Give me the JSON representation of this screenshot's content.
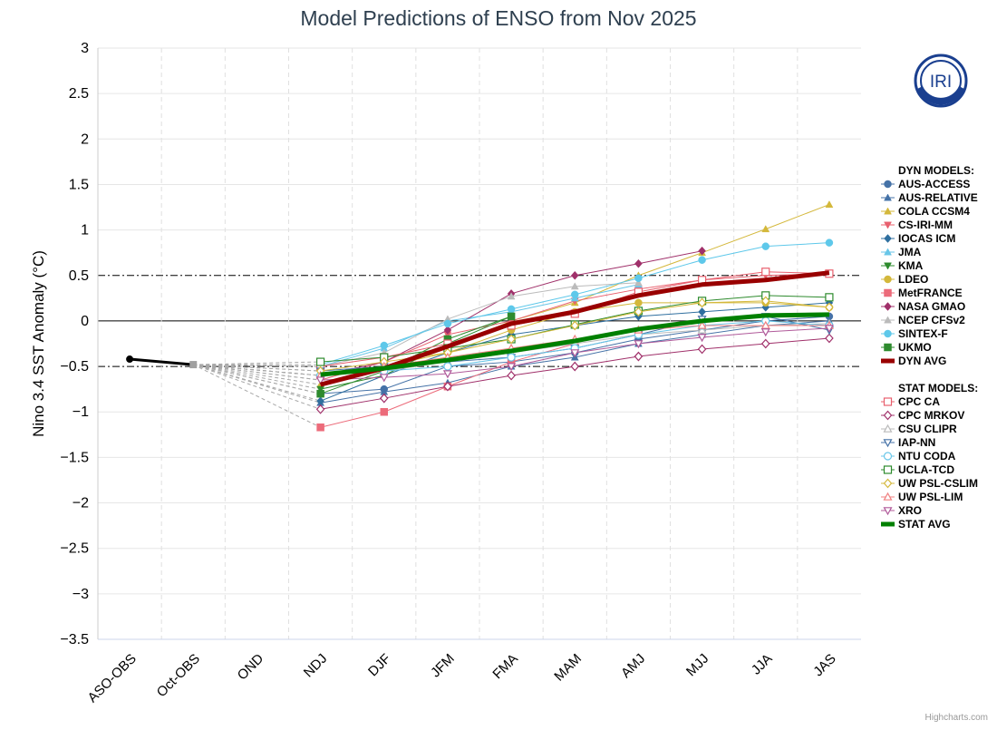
{
  "title": "Model Predictions of ENSO from Nov 2025",
  "credit": "Highcharts.com",
  "logo_text": "IRI",
  "chart_data": {
    "type": "line",
    "title": "Model Predictions of ENSO from Nov 2025",
    "ylabel": "Nino 3.4 SST Anomaly (°C)",
    "xlabel": "",
    "categories": [
      "ASO-OBS",
      "Oct-OBS",
      "OND",
      "NDJ",
      "DJF",
      "JFM",
      "FMA",
      "MAM",
      "AMJ",
      "MJJ",
      "JJA",
      "JAS"
    ],
    "ylim": [
      -3.5,
      3
    ],
    "yticks": [
      3,
      2.5,
      2,
      1.5,
      1,
      0.5,
      0,
      -0.5,
      -1,
      -1.5,
      -2,
      -2.5,
      -3,
      -3.5
    ],
    "ytick_labels": [
      "3",
      "2.5",
      "2",
      "1.5",
      "1",
      "0.5",
      "0",
      "−0.5",
      "−1",
      "−1.5",
      "−2",
      "−2.5",
      "−3",
      "−3.5"
    ],
    "threshold_lines": [
      0.5,
      -0.5
    ],
    "grid": true,
    "legend_position": "right",
    "observed": {
      "x": [
        "ASO-OBS",
        "Oct-OBS"
      ],
      "values": [
        -0.42,
        -0.48
      ],
      "color": "#000000"
    },
    "legend_groups": [
      {
        "heading": "DYN MODELS:",
        "items": [
          0,
          1,
          2,
          3,
          4,
          5,
          6,
          7,
          8,
          9,
          10,
          11,
          12,
          13
        ]
      },
      {
        "heading": "STAT MODELS:",
        "items": [
          14,
          15,
          16,
          17,
          18,
          19,
          20,
          21,
          22,
          23
        ]
      }
    ],
    "series": [
      {
        "name": "AUS-ACCESS",
        "group": "dyn",
        "color": "#4572A7",
        "marker": "circle",
        "fill": true,
        "values": [
          null,
          null,
          null,
          -0.8,
          -0.75,
          -0.5,
          -0.45,
          -0.35,
          -0.2,
          -0.1,
          0.0,
          0.05
        ]
      },
      {
        "name": "AUS-RELATIVE",
        "group": "dyn",
        "color": "#4572A7",
        "marker": "triangle",
        "fill": true,
        "values": [
          null,
          null,
          null,
          -0.9,
          -0.78,
          -0.68,
          -0.5,
          -0.4,
          -0.25,
          -0.15,
          -0.05,
          0.0
        ]
      },
      {
        "name": "COLA CCSM4",
        "group": "dyn",
        "color": "#D4B83B",
        "marker": "triangle",
        "fill": true,
        "values": [
          null,
          null,
          null,
          -0.7,
          -0.5,
          -0.3,
          0.0,
          0.2,
          0.5,
          0.75,
          1.01,
          1.28
        ]
      },
      {
        "name": "CS-IRI-MM",
        "group": "dyn",
        "color": "#E8606E",
        "marker": "triangle-down",
        "fill": true,
        "values": [
          null,
          null,
          null,
          -0.65,
          -0.45,
          -0.15,
          0.0,
          0.22,
          0.35,
          0.45,
          0.5,
          0.52
        ]
      },
      {
        "name": "IOCAS ICM",
        "group": "dyn",
        "color": "#2F6F9F",
        "marker": "diamond",
        "fill": true,
        "values": [
          null,
          null,
          null,
          -0.88,
          -0.6,
          -0.35,
          -0.15,
          -0.05,
          0.05,
          0.1,
          0.15,
          0.2
        ]
      },
      {
        "name": "JMA",
        "group": "dyn",
        "color": "#68C6E8",
        "marker": "triangle",
        "fill": true,
        "values": [
          null,
          null,
          null,
          -0.5,
          -0.3,
          0.0,
          0.1,
          0.25,
          0.4,
          null,
          null,
          null
        ]
      },
      {
        "name": "KMA",
        "group": "dyn",
        "color": "#2E8B2E",
        "marker": "triangle-down",
        "fill": true,
        "values": [
          null,
          null,
          null,
          -0.75,
          -0.6,
          -0.25,
          0.05,
          null,
          null,
          null,
          null,
          null
        ]
      },
      {
        "name": "LDEO",
        "group": "dyn",
        "color": "#D4B83B",
        "marker": "circle",
        "fill": true,
        "values": [
          null,
          null,
          null,
          -0.6,
          -0.5,
          -0.35,
          -0.1,
          0.1,
          0.2,
          0.2,
          0.2,
          0.15
        ]
      },
      {
        "name": "MetFRANCE",
        "group": "dyn",
        "color": "#EC6B7A",
        "marker": "square",
        "fill": true,
        "values": [
          null,
          null,
          null,
          -1.17,
          -1.0,
          -0.72,
          -0.45,
          -0.25,
          null,
          null,
          null,
          null
        ]
      },
      {
        "name": "NASA GMAO",
        "group": "dyn",
        "color": "#A0306A",
        "marker": "diamond",
        "fill": true,
        "values": [
          null,
          null,
          null,
          -0.6,
          -0.45,
          -0.1,
          0.3,
          0.5,
          0.63,
          0.77,
          null,
          null
        ]
      },
      {
        "name": "NCEP CFSv2",
        "group": "dyn",
        "color": "#BBBBBB",
        "marker": "triangle",
        "fill": true,
        "values": [
          null,
          null,
          null,
          -0.5,
          -0.35,
          0.02,
          0.27,
          0.38,
          0.42,
          null,
          null,
          null
        ]
      },
      {
        "name": "SINTEX-F",
        "group": "dyn",
        "color": "#5EC8EA",
        "marker": "circle",
        "fill": true,
        "values": [
          null,
          null,
          null,
          -0.48,
          -0.27,
          -0.03,
          0.13,
          0.29,
          0.47,
          0.67,
          0.82,
          0.86
        ]
      },
      {
        "name": "UKMO",
        "group": "dyn",
        "color": "#2E8B2E",
        "marker": "square",
        "fill": true,
        "values": [
          null,
          null,
          null,
          -0.8,
          -0.55,
          -0.2,
          0.05,
          null,
          null,
          null,
          null,
          null
        ]
      },
      {
        "name": "DYN AVG",
        "group": "dyn",
        "color": "#990000",
        "marker": "line",
        "fill": true,
        "avg": true,
        "values": [
          null,
          null,
          null,
          -0.7,
          -0.52,
          -0.28,
          -0.03,
          0.1,
          0.28,
          0.4,
          0.45,
          0.53
        ]
      },
      {
        "name": "CPC CA",
        "group": "stat",
        "color": "#E8606E",
        "marker": "square",
        "fill": false,
        "values": [
          null,
          null,
          null,
          -0.5,
          -0.4,
          -0.25,
          -0.05,
          0.08,
          0.32,
          0.45,
          0.54,
          0.52
        ]
      },
      {
        "name": "CPC MRKOV",
        "group": "stat",
        "color": "#A0306A",
        "marker": "diamond",
        "fill": false,
        "values": [
          null,
          null,
          null,
          -0.97,
          -0.85,
          -0.72,
          -0.6,
          -0.5,
          -0.39,
          -0.31,
          -0.25,
          -0.19
        ]
      },
      {
        "name": "CSU CLIPR",
        "group": "stat",
        "color": "#BBBBBB",
        "marker": "triangle",
        "fill": false,
        "values": [
          null,
          null,
          null,
          -0.6,
          -0.55,
          -0.45,
          -0.35,
          -0.25,
          -0.15,
          -0.1,
          -0.05,
          -0.03
        ]
      },
      {
        "name": "IAP-NN",
        "group": "stat",
        "color": "#4572A7",
        "marker": "triangle-down",
        "fill": false,
        "values": [
          null,
          null,
          null,
          -0.55,
          -0.5,
          -0.45,
          -0.4,
          -0.3,
          -0.15,
          0.02,
          0.05,
          -0.1
        ]
      },
      {
        "name": "NTU CODA",
        "group": "stat",
        "color": "#68C6E8",
        "marker": "circle",
        "fill": false,
        "values": [
          null,
          null,
          null,
          -0.6,
          -0.55,
          -0.5,
          -0.4,
          -0.3,
          -0.15,
          -0.05,
          0.0,
          -0.05
        ]
      },
      {
        "name": "UCLA-TCD",
        "group": "stat",
        "color": "#2E8B2E",
        "marker": "square",
        "fill": false,
        "values": [
          null,
          null,
          null,
          -0.45,
          -0.4,
          -0.3,
          -0.2,
          -0.04,
          0.11,
          0.22,
          0.28,
          0.26
        ]
      },
      {
        "name": "UW PSL-CSLIM",
        "group": "stat",
        "color": "#D4B83B",
        "marker": "diamond",
        "fill": false,
        "values": [
          null,
          null,
          null,
          -0.55,
          -0.45,
          -0.35,
          -0.2,
          -0.05,
          0.1,
          0.2,
          0.22,
          0.15
        ]
      },
      {
        "name": "UW PSL-LIM",
        "group": "stat",
        "color": "#F08080",
        "marker": "triangle",
        "fill": false,
        "values": [
          null,
          null,
          null,
          -0.6,
          -0.5,
          -0.4,
          -0.3,
          -0.2,
          -0.1,
          -0.05,
          -0.05,
          -0.05
        ]
      },
      {
        "name": "XRO",
        "group": "stat",
        "color": "#B05A9A",
        "marker": "triangle-down",
        "fill": false,
        "values": [
          null,
          null,
          null,
          -0.65,
          -0.62,
          -0.58,
          -0.5,
          -0.35,
          -0.25,
          -0.18,
          -0.12,
          -0.08
        ]
      },
      {
        "name": "STAT AVG",
        "group": "stat",
        "color": "#008000",
        "marker": "line",
        "fill": true,
        "avg": true,
        "values": [
          null,
          null,
          null,
          -0.59,
          -0.52,
          -0.43,
          -0.33,
          -0.22,
          -0.09,
          0.0,
          0.06,
          0.07
        ]
      }
    ]
  }
}
